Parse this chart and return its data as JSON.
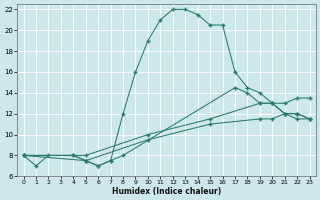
{
  "xlabel": "Humidex (Indice chaleur)",
  "bg_color": "#cce8e8",
  "grid_color": "#ffffff",
  "line_color": "#2a7a6a",
  "xlim": [
    -0.5,
    23.5
  ],
  "ylim": [
    6,
    22.5
  ],
  "xticks": [
    0,
    1,
    2,
    3,
    4,
    5,
    6,
    7,
    8,
    9,
    10,
    11,
    12,
    13,
    14,
    15,
    16,
    17,
    18,
    19,
    20,
    21,
    22,
    23
  ],
  "yticks": [
    6,
    8,
    10,
    12,
    14,
    16,
    18,
    20,
    22
  ],
  "curve_main": {
    "x": [
      0,
      1,
      2,
      4,
      5,
      6,
      7,
      8,
      9,
      10,
      11,
      12,
      13,
      14,
      15,
      16,
      17,
      18,
      19,
      20,
      21,
      22,
      23
    ],
    "y": [
      8,
      7,
      8,
      8,
      7.5,
      7,
      7.5,
      12,
      16,
      19,
      21,
      22,
      22,
      21.5,
      20.5,
      20.5,
      16,
      14.5,
      14,
      13,
      12,
      11.5,
      11.5
    ]
  },
  "curve_second": {
    "x": [
      0,
      4,
      5,
      6,
      7,
      8,
      17,
      18,
      19,
      20,
      21,
      22,
      23
    ],
    "y": [
      8,
      8,
      7.5,
      7,
      7.5,
      8,
      14.5,
      14,
      13,
      13,
      12,
      12,
      11.5
    ]
  },
  "diag_upper": {
    "x": [
      0,
      5,
      10,
      15,
      19,
      20,
      21,
      22,
      23
    ],
    "y": [
      8,
      8,
      10,
      11.5,
      13,
      13,
      13,
      13.5,
      13.5
    ]
  },
  "diag_lower": {
    "x": [
      0,
      5,
      10,
      15,
      19,
      20,
      21,
      22,
      23
    ],
    "y": [
      8,
      7.5,
      9.5,
      11,
      11.5,
      11.5,
      12,
      12,
      11.5
    ]
  }
}
